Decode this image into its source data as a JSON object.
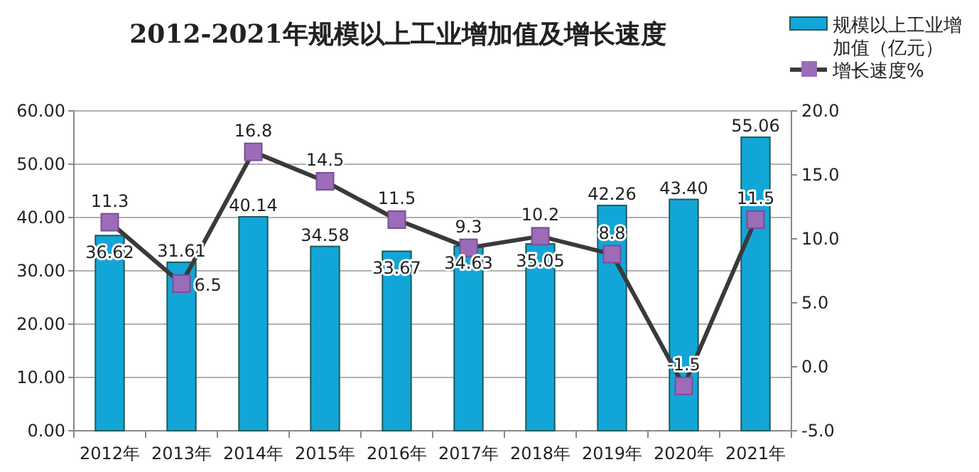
{
  "chart_data": {
    "type": "bar",
    "title": "2012-2021年规模以上工业增加值及增长速度",
    "categories": [
      "2012年",
      "2013年",
      "2014年",
      "2015年",
      "2016年",
      "2017年",
      "2018年",
      "2019年",
      "2020年",
      "2021年"
    ],
    "series": [
      {
        "name": "规模以上工业增加值（亿元）",
        "color": "#12a6d8",
        "values": [
          36.62,
          31.61,
          40.14,
          34.58,
          33.67,
          34.63,
          35.05,
          42.26,
          43.4,
          55.06
        ],
        "value_labels": [
          "36.62",
          "31.61",
          "40.14",
          "34.58",
          "33.67",
          "34.63",
          "35.05",
          "42.26",
          "43.40",
          "55.06"
        ]
      },
      {
        "name": "增长速度%",
        "type": "line",
        "axis": "y2",
        "color": "#3a3a3a",
        "values": [
          11.3,
          6.5,
          16.8,
          14.5,
          11.5,
          9.3,
          10.2,
          8.8,
          -1.5,
          11.5
        ]
      }
    ],
    "ylim": [
      0,
      60
    ],
    "yticks": [
      {
        "value": 0,
        "label": "0.00"
      },
      {
        "value": 10,
        "label": "10.00"
      },
      {
        "value": 20,
        "label": "20.00"
      },
      {
        "value": 30,
        "label": "30.00"
      },
      {
        "value": 40,
        "label": "40.00"
      },
      {
        "value": 50,
        "label": "50.00"
      },
      {
        "value": 60,
        "label": "60.00"
      }
    ],
    "y2lim": [
      -5,
      20
    ],
    "y2ticks": [
      {
        "value": -5,
        "label": "-5.0"
      },
      {
        "value": 0,
        "label": "0.0"
      },
      {
        "value": 5,
        "label": "5.0"
      },
      {
        "value": 10,
        "label": "10.0"
      },
      {
        "value": 15,
        "label": "15.0"
      },
      {
        "value": 20,
        "label": "20.0"
      }
    ],
    "grid": "y",
    "legend": "top right",
    "marker": "square",
    "data_labels": true
  }
}
